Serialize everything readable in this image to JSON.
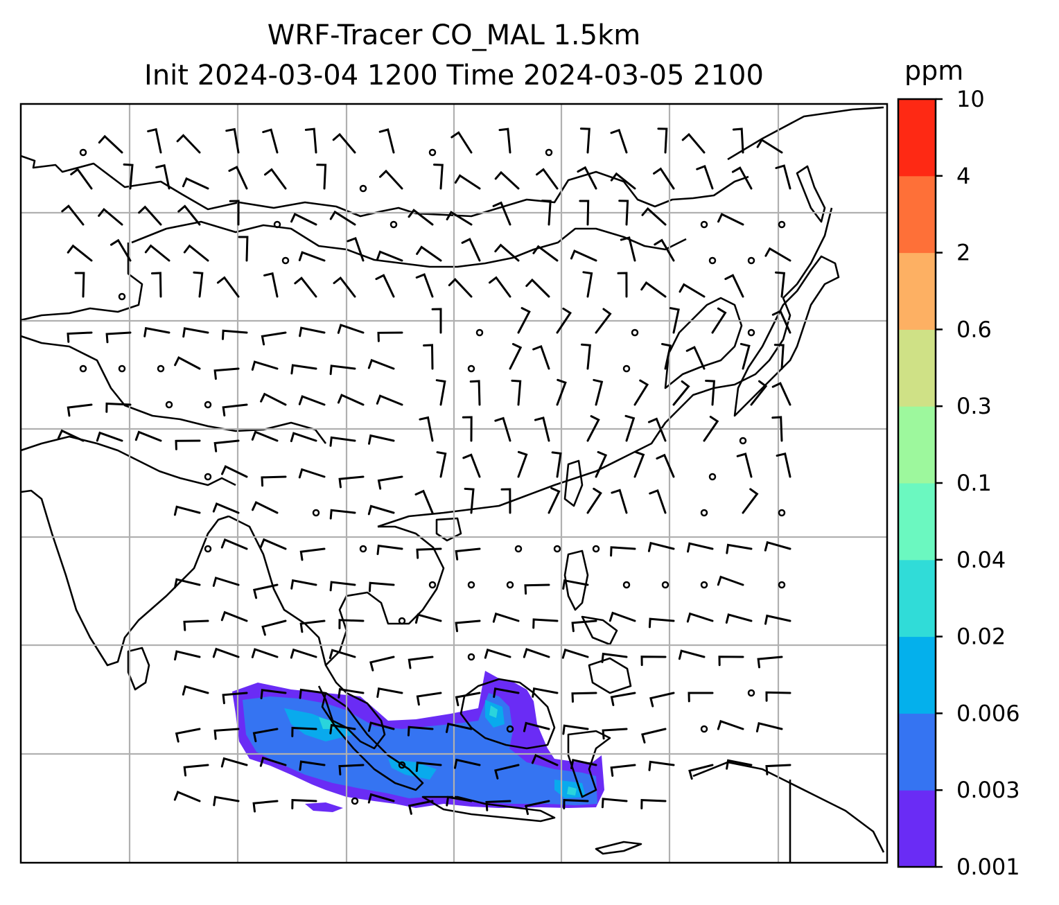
{
  "title": {
    "line1": "WRF-Tracer CO_MAL 1.5km",
    "line2": "Init 2024-03-04 1200 Time 2024-03-05 2100"
  },
  "colorbar": {
    "unit": "ppm",
    "ticks": [
      "0.001",
      "0.003",
      "0.006",
      "0.02",
      "0.04",
      "0.1",
      "0.3",
      "0.6",
      "2",
      "4",
      "10"
    ],
    "colors": [
      "#6a2cf5",
      "#3574f2",
      "#04b0ec",
      "#30dcd8",
      "#6bf8c0",
      "#9df89d",
      "#cfe186",
      "#fdb063",
      "#fe7038",
      "#fe2914"
    ]
  },
  "map": {
    "grid": true,
    "grid_color": "#b0b0b0",
    "features": [
      "coastlines",
      "country-borders",
      "wind-barbs",
      "calm-circles",
      "tracer-field"
    ]
  },
  "chart_data": {
    "type": "heatmap",
    "title": "WRF-Tracer CO_MAL 1.5km",
    "subtitle": "Init 2024-03-04 1200 Time 2024-03-05 2100",
    "colorbar_label": "ppm",
    "levels": [
      0.001,
      0.003,
      0.006,
      0.02,
      0.04,
      0.1,
      0.3,
      0.6,
      2,
      4,
      10
    ],
    "grid": true
  }
}
